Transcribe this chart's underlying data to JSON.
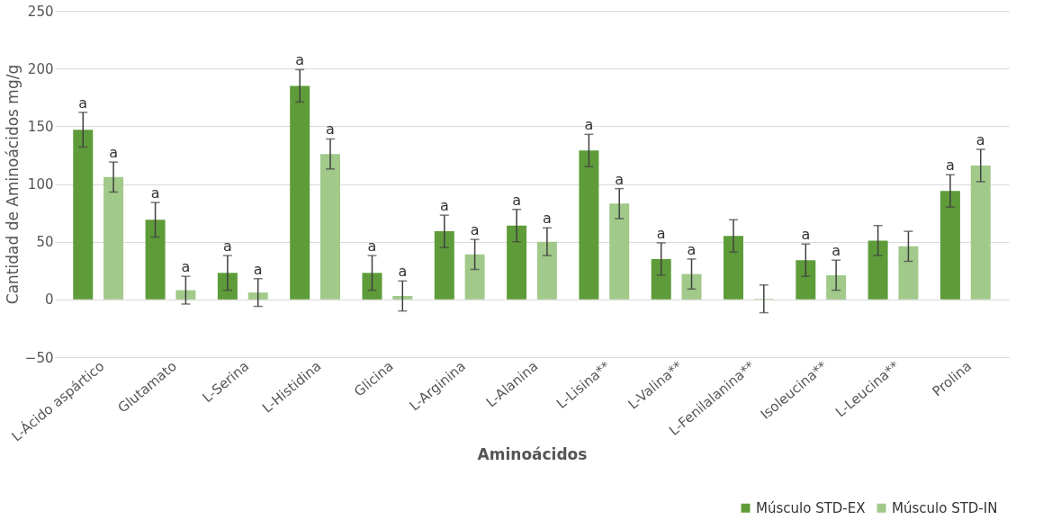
{
  "chart_data": {
    "type": "bar",
    "xlabel": "Aminoácidos",
    "ylabel": "Cantidad de Aminoácidos mg/g",
    "categories": [
      "L-Ácido aspártico",
      "Glutamato",
      "L-Serina",
      "L-Histidina",
      "Glicina",
      "L-Arginina",
      "L-Alanina",
      "L-Lisina**",
      "L-Valina**",
      "L-Fenilalanina**",
      "Isoleucina**",
      "L-Leucina**",
      "Prolina"
    ],
    "series": [
      {
        "name": "Músculo STD-EX",
        "color": "#5e9c3a",
        "values": [
          147,
          69,
          23,
          185,
          23,
          59,
          64,
          129,
          35,
          55,
          34,
          51,
          94
        ],
        "errors": [
          15,
          15,
          15,
          14,
          15,
          14,
          14,
          14,
          14,
          14,
          14,
          13,
          14
        ],
        "value_labels": [
          "a",
          "a",
          "a",
          "a",
          "a",
          "a",
          "a",
          "a",
          "a",
          null,
          "a",
          null,
          "a"
        ]
      },
      {
        "name": "Músculo STD-IN",
        "color": "#a1c98a",
        "values": [
          106,
          8,
          6,
          126,
          3,
          39,
          50,
          83,
          22,
          0.5,
          21,
          46,
          116
        ],
        "errors": [
          13,
          12,
          12,
          13,
          13,
          13,
          12,
          13,
          13,
          12,
          13,
          13,
          14
        ],
        "value_labels": [
          "a",
          "a",
          "a",
          "a",
          "a",
          "a",
          "a",
          "a",
          "a",
          null,
          "a",
          null,
          "a"
        ]
      }
    ],
    "ylim": [
      -50,
      250
    ],
    "yticks": [
      -50,
      0,
      50,
      100,
      150,
      200,
      250
    ],
    "grid": "y",
    "legend": "bottom right"
  }
}
